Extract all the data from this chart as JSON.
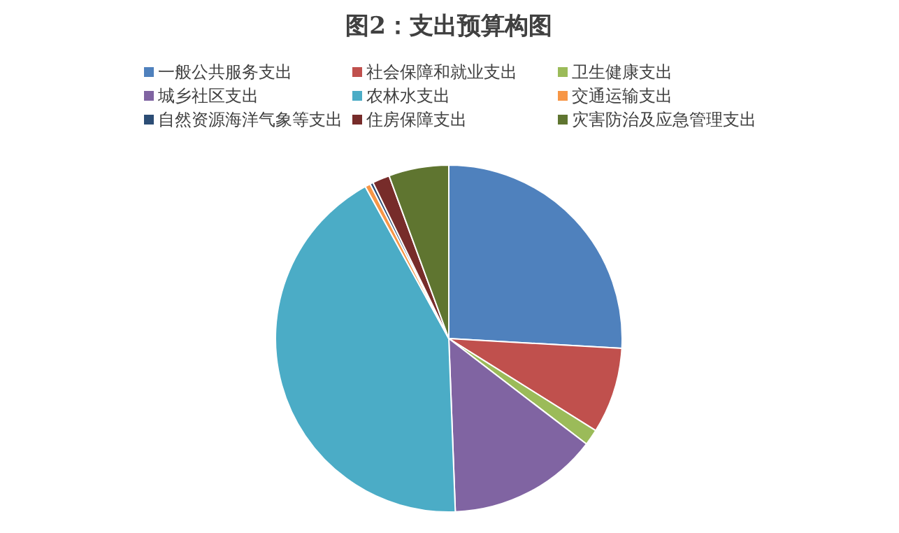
{
  "chart_data": {
    "type": "pie",
    "title": "图2：支出预算构图",
    "categories": [
      "一般公共服务支出",
      "社会保障和就业支出",
      "卫生健康支出",
      "城乡社区支出",
      "农林水支出",
      "交通运输支出",
      "自然资源海洋气象等支出",
      "住房保障支出",
      "灾害防治及应急管理支出"
    ],
    "values": [
      25.9,
      8.0,
      1.5,
      14.0,
      42.6,
      0.5,
      0.3,
      1.6,
      5.6
    ],
    "colors": [
      "#4f81bd",
      "#c0504d",
      "#9bbb59",
      "#8064a2",
      "#4bacc6",
      "#f79646",
      "#2c4d75",
      "#772c2a",
      "#5f7530"
    ],
    "legend": "top"
  }
}
